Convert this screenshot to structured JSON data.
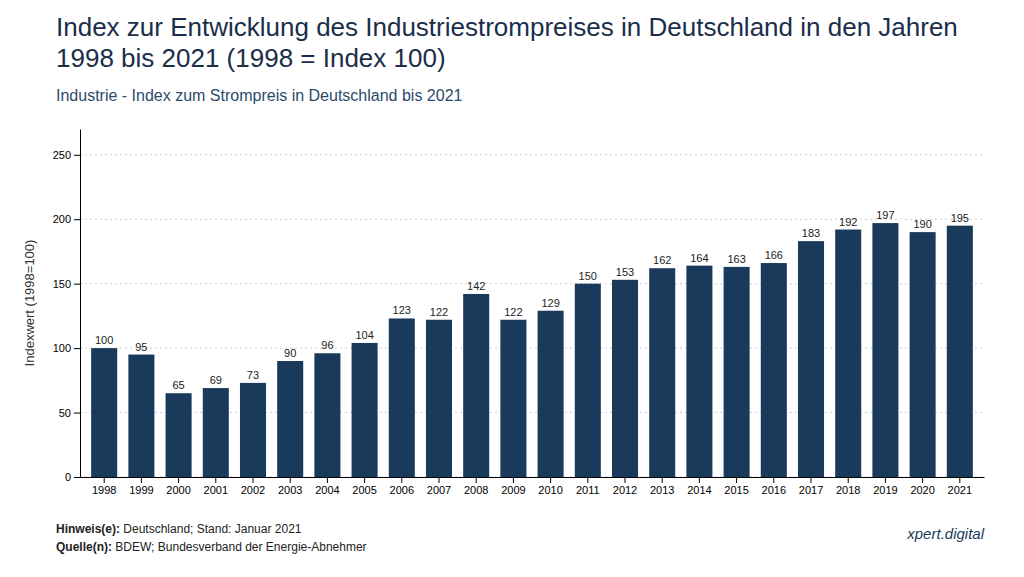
{
  "chart_data": {
    "type": "bar",
    "title": "Index zur Entwicklung des Industriestrompreises in Deutschland in den Jahren 1998 bis 2021 (1998 = Index 100)",
    "subtitle": "Industrie - Index zum Strompreis in Deutschland bis 2021",
    "ylabel": "Indexwert (1998=100)",
    "categories": [
      "1998",
      "1999",
      "2000",
      "2001",
      "2002",
      "2003",
      "2004",
      "2005",
      "2006",
      "2007",
      "2008",
      "2009",
      "2010",
      "2011",
      "2012",
      "2013",
      "2014",
      "2015",
      "2016",
      "2017",
      "2018",
      "2019",
      "2020",
      "2021"
    ],
    "values": [
      100,
      95,
      65,
      69,
      73,
      90,
      96,
      104,
      123,
      122,
      142,
      122,
      129,
      150,
      153,
      162,
      164,
      163,
      166,
      183,
      192,
      197,
      190,
      195
    ],
    "color": "#1a3a5c",
    "ylim": [
      0,
      270
    ],
    "yticks": [
      0,
      50,
      100,
      150,
      200,
      250
    ],
    "grid": true,
    "data_labels": true,
    "annotations": [
      "Hinweis(e): Deutschland; Stand: Januar 2021",
      "Quelle(n): BDEW; Bundesverband der Energie-Abnehmer",
      "xpert.digital"
    ]
  }
}
